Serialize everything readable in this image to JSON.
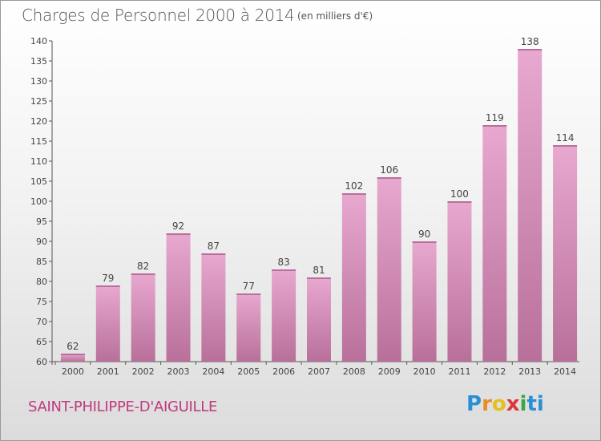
{
  "header": {
    "title": "Charges de Personnel 2000 à 2014",
    "subtitle": "(en milliers d'€)"
  },
  "footer": {
    "commune": "SAINT-PHILIPPE-D'AIGUILLE",
    "logo_text": "Proxiti",
    "logo_colors": [
      "#2b8fd6",
      "#e88d1e",
      "#e4c01c",
      "#e0343a",
      "#3aa845",
      "#2b8fd6"
    ]
  },
  "chart_data": {
    "type": "bar",
    "title": "Charges de Personnel 2000 à 2014",
    "subtitle": "(en milliers d'€)",
    "categories": [
      "2000",
      "2001",
      "2002",
      "2003",
      "2004",
      "2005",
      "2006",
      "2007",
      "2008",
      "2009",
      "2010",
      "2011",
      "2012",
      "2013",
      "2014"
    ],
    "values": [
      62,
      79,
      82,
      92,
      87,
      77,
      83,
      81,
      102,
      106,
      90,
      100,
      119,
      138,
      114
    ],
    "ylim": [
      60,
      140
    ],
    "yticks": [
      60,
      65,
      70,
      75,
      80,
      85,
      90,
      95,
      100,
      105,
      110,
      115,
      120,
      125,
      130,
      135,
      140
    ],
    "grid": false,
    "legend": "none",
    "colors": {
      "bar_light": "#e8a8cf",
      "bar_dark": "#b8709a",
      "label": "#444444"
    }
  }
}
